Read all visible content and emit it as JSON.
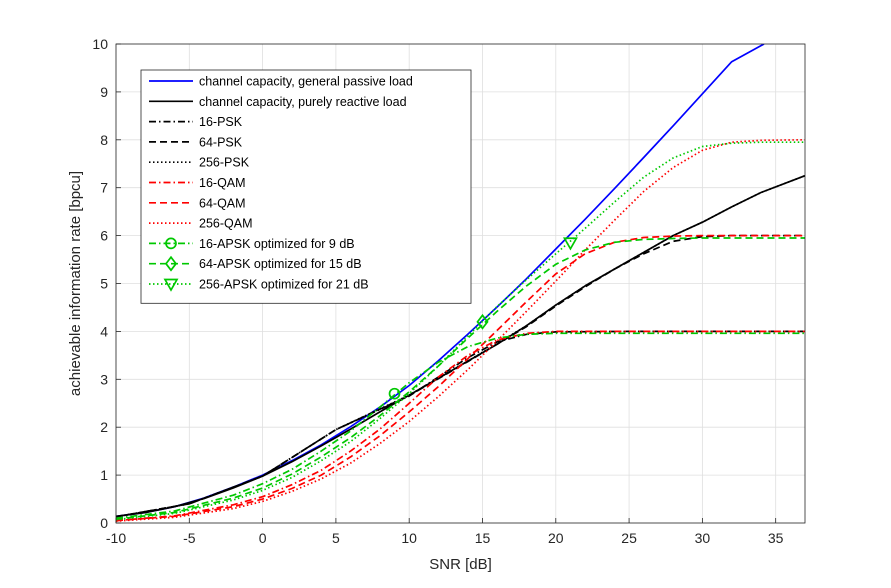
{
  "chart_data": {
    "type": "line",
    "title": "",
    "xlabel": "SNR [dB]",
    "ylabel": "achievable information rate [bpcu]",
    "xlim": [
      -10,
      37
    ],
    "ylim": [
      0,
      10
    ],
    "xticks": [
      "-10",
      "-5",
      "0",
      "5",
      "10",
      "15",
      "20",
      "25",
      "30",
      "35"
    ],
    "yticks": [
      "0",
      "1",
      "2",
      "3",
      "4",
      "5",
      "6",
      "7",
      "8",
      "9",
      "10"
    ],
    "grid": true,
    "legend_position": "top-left",
    "series": [
      {
        "name": "channel capacity, general passive load",
        "color": "#0000ff",
        "dash": "solid",
        "marker": "none",
        "x": [
          -10,
          -8,
          -6,
          -4,
          -2,
          0,
          2,
          4,
          6,
          8,
          10,
          12,
          14,
          16,
          18,
          20,
          22,
          24,
          26,
          28,
          30,
          32,
          34.2
        ],
        "y": [
          0.14,
          0.22,
          0.34,
          0.52,
          0.75,
          1.0,
          1.3,
          1.63,
          2.01,
          2.42,
          2.87,
          3.39,
          3.94,
          4.51,
          5.1,
          5.72,
          6.34,
          6.98,
          7.63,
          8.29,
          8.96,
          9.63,
          10.0
        ]
      },
      {
        "name": "channel capacity, purely reactive load",
        "color": "#000000",
        "dash": "solid",
        "marker": "none",
        "x": [
          -10,
          -8,
          -6,
          -4,
          -2,
          0,
          2,
          4,
          6,
          8,
          10,
          12,
          14,
          16,
          18,
          20,
          22,
          24,
          26,
          28,
          30,
          32,
          34,
          37
        ],
        "y": [
          0.14,
          0.22,
          0.34,
          0.51,
          0.73,
          0.98,
          1.28,
          1.61,
          1.96,
          2.32,
          2.67,
          3.02,
          3.38,
          3.73,
          4.12,
          4.55,
          4.95,
          5.3,
          5.65,
          6.0,
          6.28,
          6.6,
          6.9,
          7.25
        ]
      },
      {
        "name": "16-PSK",
        "color": "#000000",
        "dash": "dashdot",
        "marker": "none",
        "x": [
          -10,
          -5,
          0,
          5,
          10,
          12,
          14,
          16,
          18,
          20,
          25,
          30,
          37
        ],
        "y": [
          0.13,
          0.4,
          0.98,
          1.95,
          2.65,
          3.05,
          3.45,
          3.78,
          3.94,
          3.99,
          4.0,
          4.0,
          4.0
        ]
      },
      {
        "name": "64-PSK",
        "color": "#000000",
        "dash": "dashed",
        "marker": "none",
        "x": [
          -10,
          -5,
          0,
          5,
          10,
          14,
          18,
          20,
          22,
          24,
          26,
          28,
          30,
          32,
          37
        ],
        "y": [
          0.13,
          0.4,
          0.98,
          1.95,
          2.66,
          3.37,
          4.1,
          4.53,
          4.93,
          5.3,
          5.62,
          5.88,
          5.98,
          6.0,
          6.0
        ]
      },
      {
        "name": "256-PSK",
        "color": "#000000",
        "dash": "dotted",
        "marker": "none",
        "x": [
          -10,
          -5,
          0,
          5,
          10,
          14,
          18,
          20,
          22,
          24,
          26,
          28,
          30,
          32,
          34,
          37
        ],
        "y": [
          0.13,
          0.4,
          0.98,
          1.95,
          2.67,
          3.38,
          4.12,
          4.55,
          4.95,
          5.3,
          5.65,
          6.0,
          6.28,
          6.6,
          6.9,
          7.25
        ]
      },
      {
        "name": "16-QAM",
        "color": "#ff0000",
        "dash": "dashdot",
        "marker": "none",
        "x": [
          -10,
          -6,
          -2,
          0,
          2,
          4,
          6,
          8,
          10,
          12,
          14,
          16,
          18,
          20,
          22,
          25,
          30,
          37
        ],
        "y": [
          0.05,
          0.15,
          0.38,
          0.55,
          0.8,
          1.1,
          1.5,
          1.96,
          2.5,
          3.05,
          3.5,
          3.82,
          3.96,
          4.0,
          4.0,
          4.0,
          4.0,
          4.0
        ]
      },
      {
        "name": "64-QAM",
        "color": "#ff0000",
        "dash": "dashed",
        "marker": "none",
        "x": [
          -10,
          -6,
          -2,
          0,
          2,
          4,
          6,
          8,
          10,
          12,
          14,
          16,
          18,
          20,
          22,
          24,
          26,
          28,
          30,
          37
        ],
        "y": [
          0.05,
          0.14,
          0.34,
          0.5,
          0.72,
          1.0,
          1.38,
          1.82,
          2.32,
          2.85,
          3.43,
          4.02,
          4.62,
          5.2,
          5.62,
          5.86,
          5.96,
          5.99,
          6.0,
          6.0
        ]
      },
      {
        "name": "256-QAM",
        "color": "#ff0000",
        "dash": "dotted",
        "marker": "none",
        "x": [
          -10,
          -6,
          -2,
          0,
          2,
          4,
          6,
          8,
          10,
          12,
          14,
          16,
          18,
          20,
          22,
          24,
          26,
          28,
          30,
          32,
          34,
          37
        ],
        "y": [
          0.04,
          0.12,
          0.3,
          0.45,
          0.66,
          0.92,
          1.25,
          1.66,
          2.12,
          2.64,
          3.2,
          3.8,
          4.42,
          5.05,
          5.7,
          6.32,
          6.92,
          7.42,
          7.78,
          7.95,
          7.99,
          8.0
        ]
      },
      {
        "name": "16-APSK optimized for 9 dB",
        "color": "#00c800",
        "dash": "dashdot",
        "marker": "circle",
        "x": [
          -10,
          -6,
          -2,
          0,
          2,
          4,
          6,
          8,
          10,
          12,
          14,
          16,
          18,
          20,
          25,
          30,
          37
        ],
        "y": [
          0.1,
          0.25,
          0.58,
          0.82,
          1.12,
          1.5,
          1.92,
          2.42,
          2.93,
          3.36,
          3.68,
          3.86,
          3.94,
          3.96,
          3.96,
          3.96,
          3.96
        ],
        "marker_at": [
          9
        ],
        "marker_y": [
          2.7
        ]
      },
      {
        "name": "64-APSK optimized for 15 dB",
        "color": "#00c800",
        "dash": "dashed",
        "marker": "diamond",
        "x": [
          -10,
          -6,
          -2,
          0,
          2,
          4,
          6,
          8,
          10,
          12,
          14,
          16,
          18,
          20,
          22,
          24,
          26,
          28,
          30,
          37
        ],
        "y": [
          0.08,
          0.22,
          0.52,
          0.73,
          1.02,
          1.38,
          1.78,
          2.24,
          2.74,
          3.28,
          3.86,
          4.42,
          4.95,
          5.4,
          5.7,
          5.86,
          5.92,
          5.94,
          5.95,
          5.95
        ],
        "marker_at": [
          15
        ],
        "marker_y": [
          4.2
        ]
      },
      {
        "name": "256-APSK optimized for 21 dB",
        "color": "#00c800",
        "dash": "dotted",
        "marker": "triangle-down",
        "x": [
          -10,
          -6,
          -2,
          0,
          2,
          4,
          6,
          8,
          10,
          12,
          14,
          16,
          18,
          20,
          22,
          24,
          26,
          28,
          30,
          32,
          34,
          37
        ],
        "y": [
          0.07,
          0.2,
          0.48,
          0.68,
          0.95,
          1.3,
          1.7,
          2.18,
          2.7,
          3.28,
          3.9,
          4.52,
          5.08,
          5.62,
          6.15,
          6.7,
          7.22,
          7.62,
          7.86,
          7.93,
          7.95,
          7.95
        ],
        "marker_at": [
          21
        ],
        "marker_y": [
          5.85
        ]
      }
    ]
  }
}
